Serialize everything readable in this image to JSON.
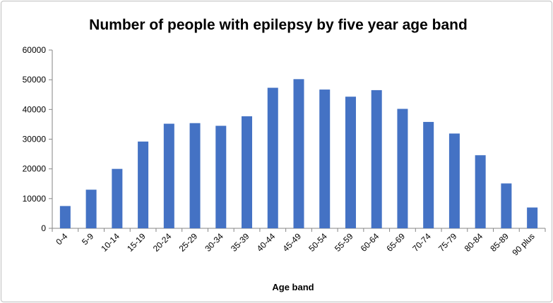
{
  "chart_data": {
    "type": "bar",
    "title": "Number of people with epilepsy by five year age band",
    "xlabel": "Age band",
    "ylabel": "",
    "categories": [
      "0-4",
      "5-9",
      "10-14",
      "15-19",
      "20-24",
      "25-29",
      "30-34",
      "35-39",
      "40-44",
      "45-49",
      "50-54",
      "55-59",
      "60-64",
      "65-69",
      "70-74",
      "75-79",
      "80-84",
      "85-89",
      "90 plus"
    ],
    "values": [
      7500,
      13000,
      20000,
      29200,
      35200,
      35400,
      34500,
      37700,
      47300,
      50200,
      46700,
      44300,
      46500,
      40200,
      35800,
      31900,
      24600,
      15100,
      7000
    ],
    "ylim": [
      0,
      60000
    ],
    "yticks": [
      "0",
      "10000",
      "20000",
      "30000",
      "40000",
      "50000",
      "60000"
    ],
    "ytick_values": [
      0,
      10000,
      20000,
      30000,
      40000,
      50000,
      60000
    ],
    "grid": false,
    "legend": "none",
    "bar_color": "#4472c4",
    "axis_color": "#868686"
  }
}
